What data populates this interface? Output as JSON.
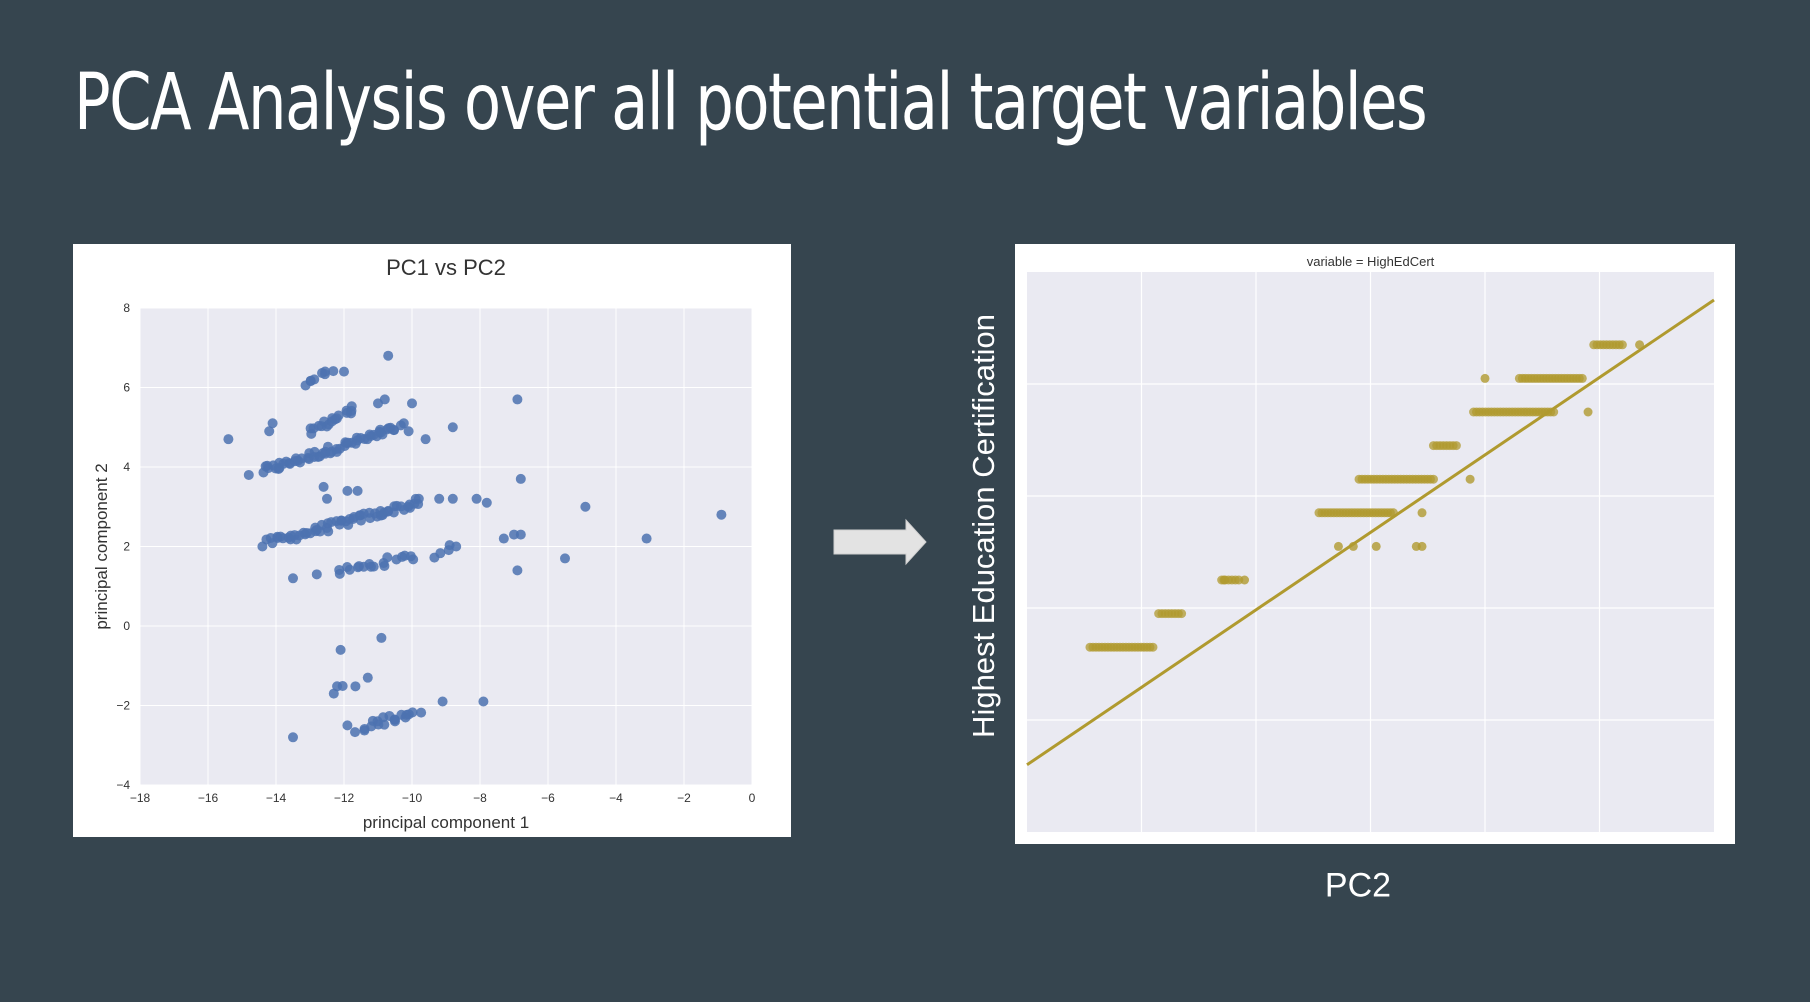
{
  "slide": {
    "title": "PCA Analysis over all potential target variables"
  },
  "colors": {
    "background": "#36454f",
    "scatter_point": "#4c72b0",
    "regression": "#b09a2f",
    "plot_area": "#eaeaf2",
    "arrow": "#e3e3e3"
  },
  "arrow_icon": "right-arrow-icon",
  "chart_data": [
    {
      "type": "scatter",
      "title": "PC1 vs PC2",
      "xlabel": "principal component 1",
      "ylabel": "principal component 2",
      "xlim": [
        -18,
        0
      ],
      "ylim": [
        -4,
        8
      ],
      "xticks": [
        "−18",
        "−16",
        "−14",
        "−12",
        "−10",
        "−8",
        "−6",
        "−4",
        "−2",
        "0"
      ],
      "yticks": [
        "−4",
        "−2",
        "0",
        "2",
        "4",
        "6",
        "8"
      ],
      "grid": true,
      "point_color": "#4c72b0",
      "clusters": [
        {
          "x0": -14.4,
          "y0": 3.9,
          "x1": -10.3,
          "y1": 5.0,
          "n": 60
        },
        {
          "x0": -13.0,
          "y0": 4.9,
          "x1": -11.7,
          "y1": 5.45,
          "n": 18
        },
        {
          "x0": -13.1,
          "y0": 6.15,
          "x1": -12.4,
          "y1": 6.45,
          "n": 8
        },
        {
          "x0": -14.2,
          "y0": 2.1,
          "x1": -9.8,
          "y1": 3.1,
          "n": 60
        },
        {
          "x0": -12.2,
          "y0": 1.35,
          "x1": -10.0,
          "y1": 1.75,
          "n": 18
        },
        {
          "x0": -9.4,
          "y0": 1.75,
          "x1": -8.8,
          "y1": 2.0,
          "n": 4
        },
        {
          "x0": -11.6,
          "y0": -2.6,
          "x1": -9.8,
          "y1": -2.1,
          "n": 18
        },
        {
          "x0": -12.2,
          "y0": -1.6,
          "x1": -11.7,
          "y1": -1.5,
          "n": 3
        }
      ],
      "points": [
        [
          -15.4,
          4.7
        ],
        [
          -14.8,
          3.8
        ],
        [
          -14.2,
          4.9
        ],
        [
          -14.1,
          5.1
        ],
        [
          -12.0,
          6.4
        ],
        [
          -10.7,
          6.8
        ],
        [
          -10.0,
          5.6
        ],
        [
          -10.1,
          4.9
        ],
        [
          -9.6,
          4.7
        ],
        [
          -8.8,
          5.0
        ],
        [
          -11.0,
          5.6
        ],
        [
          -10.8,
          5.7
        ],
        [
          -6.9,
          5.7
        ],
        [
          -6.8,
          3.7
        ],
        [
          -12.6,
          3.5
        ],
        [
          -12.5,
          3.2
        ],
        [
          -11.9,
          3.4
        ],
        [
          -11.6,
          3.4
        ],
        [
          -9.8,
          3.2
        ],
        [
          -9.2,
          3.2
        ],
        [
          -8.8,
          3.2
        ],
        [
          -8.1,
          3.2
        ],
        [
          -7.8,
          3.1
        ],
        [
          -8.7,
          2.0
        ],
        [
          -7.3,
          2.2
        ],
        [
          -7.0,
          2.3
        ],
        [
          -6.8,
          2.3
        ],
        [
          -4.9,
          3.0
        ],
        [
          -3.1,
          2.2
        ],
        [
          -0.9,
          2.8
        ],
        [
          -13.5,
          1.2
        ],
        [
          -12.8,
          1.3
        ],
        [
          -14.4,
          2.0
        ],
        [
          -6.9,
          1.4
        ],
        [
          -5.5,
          1.7
        ],
        [
          -12.1,
          -0.6
        ],
        [
          -10.9,
          -0.3
        ],
        [
          -11.3,
          -1.3
        ],
        [
          -12.3,
          -1.7
        ],
        [
          -9.1,
          -1.9
        ],
        [
          -7.9,
          -1.9
        ],
        [
          -13.5,
          -2.8
        ],
        [
          -11.9,
          -2.5
        ],
        [
          -10.5,
          -2.4
        ]
      ]
    },
    {
      "type": "scatter",
      "title": "variable = HighEdCert",
      "xlabel": "PC2",
      "ylabel": "Highest Education Certification",
      "xlim": [
        0,
        6
      ],
      "ylim": [
        0,
        5
      ],
      "grid": true,
      "color": "#b09a2f",
      "regression_line": {
        "x": [
          0,
          6
        ],
        "y": [
          0.6,
          4.75
        ]
      },
      "bands": [
        {
          "x0": 0.55,
          "x1": 1.1,
          "y": 1.65
        },
        {
          "x0": 1.15,
          "x1": 1.35,
          "y": 1.95
        },
        {
          "x0": 1.7,
          "x1": 1.85,
          "y": 2.25
        },
        {
          "x0": 2.55,
          "x1": 3.2,
          "y": 2.85
        },
        {
          "x0": 2.9,
          "x1": 3.55,
          "y": 3.15
        },
        {
          "x0": 3.55,
          "x1": 3.75,
          "y": 3.45
        },
        {
          "x0": 3.9,
          "x1": 4.6,
          "y": 3.75
        },
        {
          "x0": 4.3,
          "x1": 4.85,
          "y": 4.05
        },
        {
          "x0": 4.95,
          "x1": 5.2,
          "y": 4.35
        }
      ],
      "points": [
        [
          2.72,
          2.55
        ],
        [
          2.85,
          2.55
        ],
        [
          3.05,
          2.55
        ],
        [
          3.4,
          2.55
        ],
        [
          3.45,
          2.55
        ],
        [
          1.72,
          2.25
        ],
        [
          1.9,
          2.25
        ],
        [
          3.45,
          2.85
        ],
        [
          3.87,
          3.15
        ],
        [
          4.9,
          3.75
        ],
        [
          4.0,
          4.05
        ],
        [
          5.35,
          4.35
        ]
      ]
    }
  ],
  "right_chart_labels": {
    "ylabel": "Highest Education Certification",
    "xlabel": "PC2"
  }
}
